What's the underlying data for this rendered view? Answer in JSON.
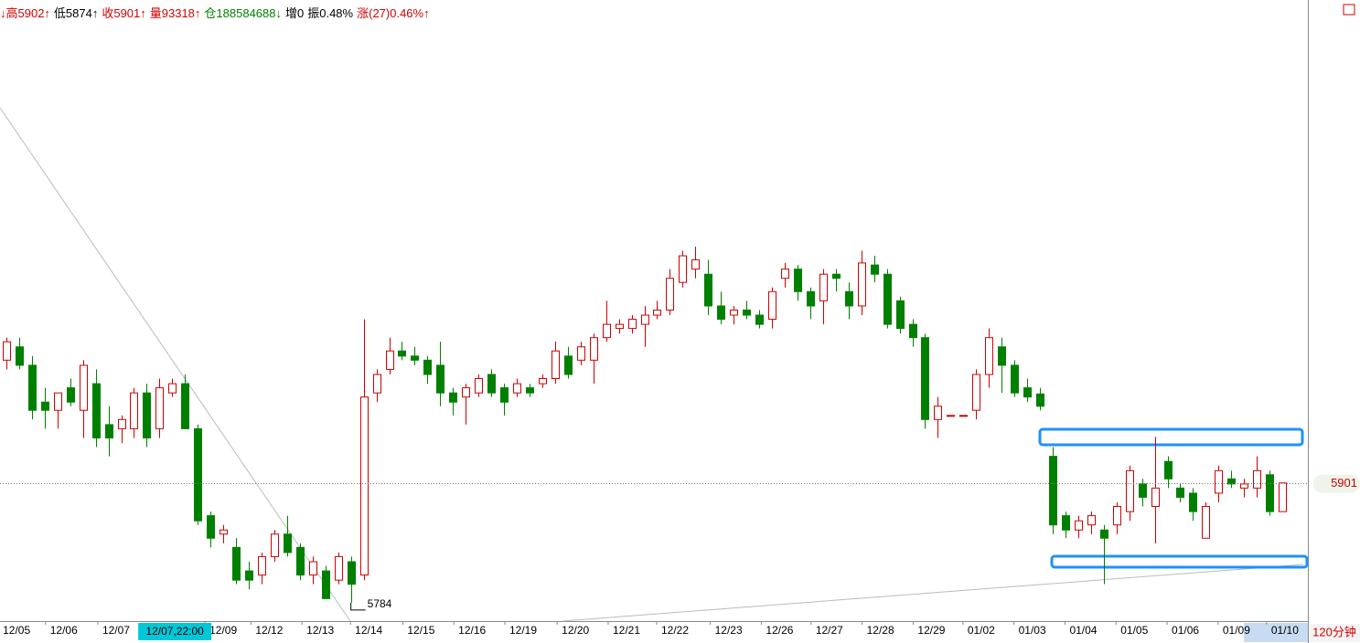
{
  "header": {
    "items": [
      {
        "text": "↓高5902↑",
        "color": "#d00000"
      },
      {
        "text": "低5874↑",
        "color": "#000000"
      },
      {
        "text": "收5901↑",
        "color": "#d00000"
      },
      {
        "text": "量93318↑",
        "color": "#d00000"
      },
      {
        "text": "仓188584688↓",
        "color": "#008000"
      },
      {
        "text": "增0",
        "color": "#000000"
      },
      {
        "text": "振0.48%",
        "color": "#000000"
      },
      {
        "text": "涨(27)0.46%↑",
        "color": "#d00000"
      }
    ]
  },
  "chart_data": {
    "type": "candlestick",
    "period_label": "120分钟",
    "up_color": "#d00000",
    "down_color": "#008000",
    "ylim": [
      5766,
      6373
    ],
    "xlim": [
      -0.5,
      102
    ],
    "last_price": 5901,
    "low_label": 5784,
    "cursor_label": {
      "value": 13.2,
      "label": "12/07,22:00"
    },
    "xticks": [
      {
        "value": 0.8,
        "label": "12/05"
      },
      {
        "value": 4.5,
        "label": "12/06"
      },
      {
        "value": 8.6,
        "label": "12/07"
      },
      {
        "value": 17,
        "label": "12/09"
      },
      {
        "value": 20.6,
        "label": "12/12"
      },
      {
        "value": 24.6,
        "label": "12/13"
      },
      {
        "value": 28.4,
        "label": "12/14"
      },
      {
        "value": 32.5,
        "label": "12/15"
      },
      {
        "value": 36.5,
        "label": "12/16"
      },
      {
        "value": 40.5,
        "label": "12/19"
      },
      {
        "value": 44.6,
        "label": "12/20"
      },
      {
        "value": 48.6,
        "label": "12/21"
      },
      {
        "value": 52.4,
        "label": "12/22"
      },
      {
        "value": 56.6,
        "label": "12/23"
      },
      {
        "value": 60.6,
        "label": "12/26"
      },
      {
        "value": 64.5,
        "label": "12/27"
      },
      {
        "value": 68.5,
        "label": "12/28"
      },
      {
        "value": 72.5,
        "label": "12/29"
      },
      {
        "value": 76.4,
        "label": "01/02"
      },
      {
        "value": 80.4,
        "label": "01/03"
      },
      {
        "value": 84.4,
        "label": "01/04"
      },
      {
        "value": 88.4,
        "label": "01/05"
      },
      {
        "value": 92.4,
        "label": "01/06"
      },
      {
        "value": 96.4,
        "label": "01/09"
      },
      {
        "value": 100.2,
        "label": "01/10"
      }
    ],
    "open": [
      6021,
      6034,
      6016,
      5980,
      5972,
      5994,
      5972,
      5998,
      5958,
      5954,
      5954,
      5989,
      5954,
      5989,
      5998,
      5954,
      5869,
      5851,
      5838,
      5815,
      5811,
      5829,
      5851,
      5838,
      5811,
      5815,
      5806,
      5824,
      5811,
      5989,
      6012,
      6030,
      6025,
      6021,
      6016,
      5989,
      5985,
      5989,
      6007,
      5994,
      5989,
      5994,
      5998,
      6003,
      6025,
      6021,
      6021,
      6043,
      6052,
      6052,
      6056,
      6065,
      6070,
      6097,
      6110,
      6105,
      6074,
      6065,
      6070,
      6065,
      6061,
      6101,
      6110,
      6088,
      6079,
      6105,
      6088,
      6074,
      6114,
      6105,
      6079,
      6056,
      6043,
      5963,
      5967,
      5967,
      5972,
      6007,
      6034,
      6016,
      5994,
      5988,
      5927,
      5869,
      5855,
      5860,
      5855,
      5860,
      5873,
      5900,
      5878,
      5922,
      5896,
      5891,
      5847,
      5891,
      5905,
      5896,
      5896,
      5909,
      5873
    ],
    "high": [
      6043,
      6043,
      6025,
      5994,
      5985,
      6003,
      6021,
      6012,
      5976,
      5967,
      5994,
      5998,
      6003,
      6003,
      6007,
      5958,
      5873,
      5860,
      5847,
      5824,
      5833,
      5855,
      5869,
      5842,
      5829,
      5820,
      5833,
      5829,
      6061,
      6012,
      6043,
      6039,
      6034,
      6025,
      6039,
      5994,
      5998,
      6007,
      6012,
      5998,
      6003,
      5998,
      6007,
      6039,
      6034,
      6039,
      6047,
      6079,
      6061,
      6065,
      6074,
      6079,
      6110,
      6128,
      6132,
      6119,
      6088,
      6074,
      6079,
      6070,
      6092,
      6116,
      6114,
      6092,
      6110,
      6110,
      6097,
      6128,
      6123,
      6110,
      6083,
      6061,
      6047,
      5985,
      5967,
      5967,
      6012,
      6052,
      6043,
      6021,
      6003,
      5994,
      5936,
      5873,
      5869,
      5873,
      5860,
      5882,
      5918,
      5905,
      5946,
      5927,
      5900,
      5896,
      5882,
      5918,
      5913,
      5905,
      5927,
      5913,
      5900
    ],
    "low": [
      6012,
      6012,
      5963,
      5954,
      5954,
      5976,
      5945,
      5936,
      5927,
      5940,
      5945,
      5936,
      5945,
      5985,
      5954,
      5860,
      5838,
      5842,
      5802,
      5797,
      5802,
      5824,
      5829,
      5806,
      5802,
      5788,
      5802,
      5784,
      5806,
      5980,
      6007,
      6021,
      6016,
      5998,
      5976,
      5967,
      5958,
      5985,
      5985,
      5967,
      5985,
      5985,
      5994,
      5998,
      6003,
      6016,
      5998,
      6039,
      6047,
      6047,
      6034,
      6061,
      6065,
      6092,
      6101,
      6065,
      6056,
      6056,
      6061,
      6052,
      6052,
      6092,
      6079,
      6061,
      6056,
      6088,
      6061,
      6065,
      6097,
      6052,
      6047,
      6034,
      5954,
      5945,
      5967,
      5967,
      5963,
      5994,
      5989,
      5985,
      5980,
      5972,
      5851,
      5847,
      5847,
      5851,
      5802,
      5851,
      5864,
      5878,
      5842,
      5896,
      5882,
      5864,
      5847,
      5882,
      5896,
      5887,
      5887,
      5869,
      5873
    ],
    "close": [
      6039,
      6016,
      5972,
      5972,
      5989,
      5980,
      6016,
      5945,
      5945,
      5963,
      5989,
      5945,
      5994,
      5998,
      5954,
      5864,
      5847,
      5855,
      5806,
      5806,
      5829,
      5851,
      5833,
      5811,
      5824,
      5788,
      5829,
      5802,
      5985,
      6007,
      6030,
      6025,
      6021,
      6007,
      5989,
      5980,
      5994,
      6003,
      5989,
      5980,
      5998,
      5989,
      6003,
      6030,
      6007,
      6034,
      6043,
      6056,
      6056,
      6061,
      6065,
      6070,
      6101,
      6123,
      6119,
      6074,
      6061,
      6070,
      6065,
      6056,
      6088,
      6110,
      6088,
      6074,
      6105,
      6101,
      6074,
      6116,
      6105,
      6056,
      6052,
      6043,
      5963,
      5976,
      5967,
      5967,
      6007,
      6043,
      6016,
      5989,
      5985,
      5976,
      5860,
      5855,
      5864,
      5869,
      5847,
      5878,
      5913,
      5887,
      5896,
      5905,
      5887,
      5873,
      5878,
      5913,
      5900,
      5900,
      5913,
      5873,
      5901
    ]
  }
}
